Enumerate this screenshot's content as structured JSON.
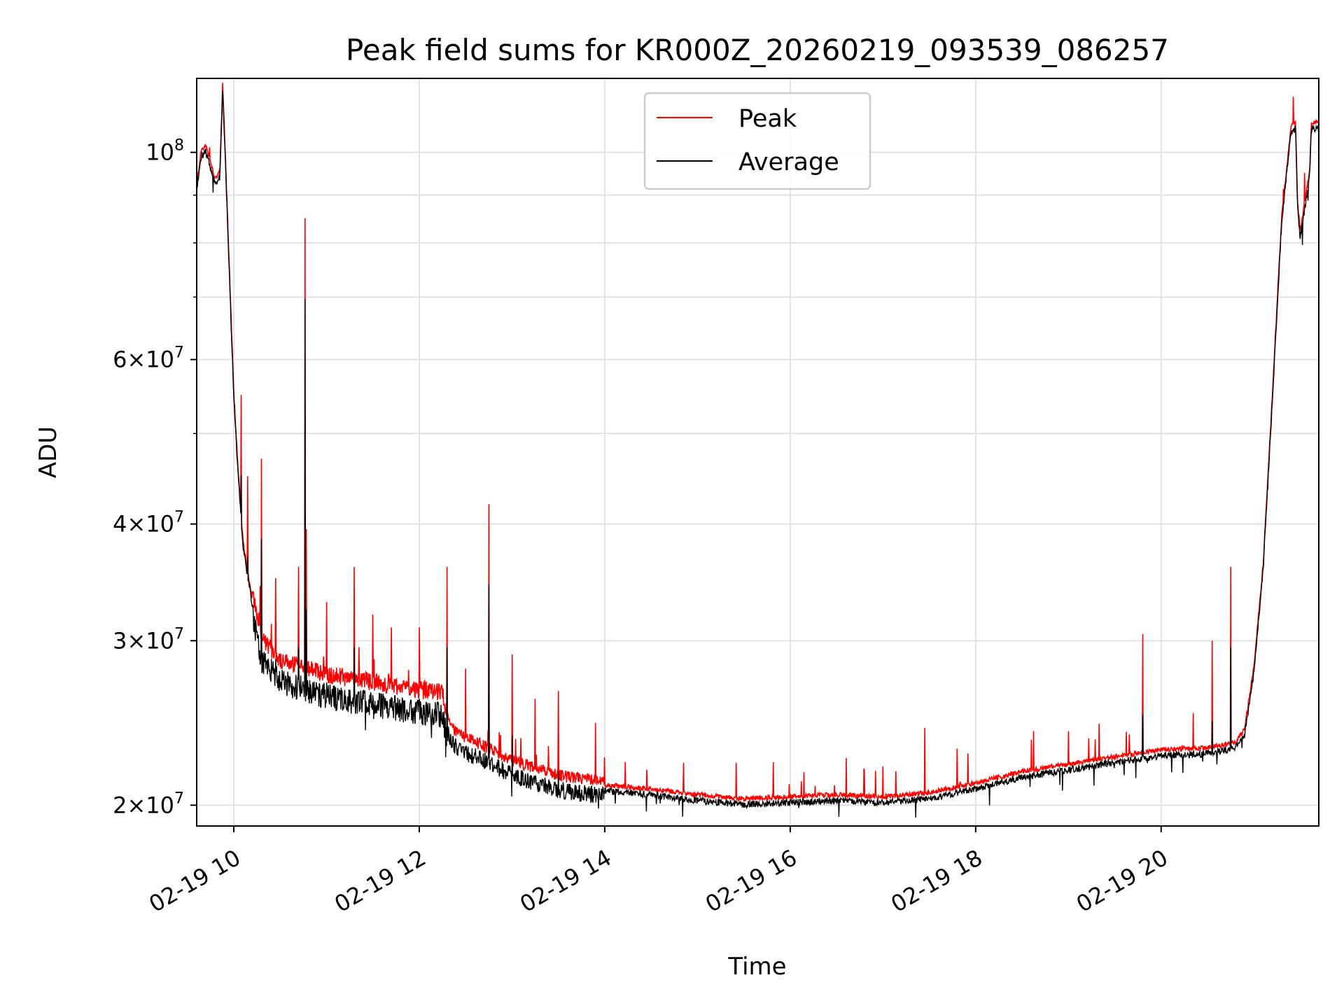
{
  "chart_data": {
    "type": "line",
    "title": "Peak field sums for KR000Z_20260219_093539_086257",
    "xlabel": "Time",
    "ylabel": "ADU",
    "yscale": "log",
    "x_unit": "hours",
    "xlim": [
      9.6,
      21.7
    ],
    "ylim": [
      19000000,
      120000000
    ],
    "grid": true,
    "legend_position": "upper-center",
    "x_ticks": [
      {
        "value": 10,
        "label": "02-19 10"
      },
      {
        "value": 12,
        "label": "02-19 12"
      },
      {
        "value": 14,
        "label": "02-19 14"
      },
      {
        "value": 16,
        "label": "02-19 16"
      },
      {
        "value": 18,
        "label": "02-19 18"
      },
      {
        "value": 20,
        "label": "02-19 20"
      }
    ],
    "y_ticks": [
      {
        "value": 20000000,
        "base": "2",
        "exp": "7"
      },
      {
        "value": 30000000,
        "base": "3",
        "exp": "7"
      },
      {
        "value": 40000000,
        "base": "4",
        "exp": "7"
      },
      {
        "value": 60000000,
        "base": "6",
        "exp": "7"
      },
      {
        "value": 100000000,
        "base": "10",
        "exp": "8"
      }
    ],
    "y_minor_ticks": [
      50000000,
      70000000,
      80000000,
      90000000
    ],
    "series": [
      {
        "name": "Peak",
        "color": "#ff0000",
        "baseline": [
          [
            9.6,
            92000000
          ],
          [
            9.65,
            100000000
          ],
          [
            9.7,
            101000000
          ],
          [
            9.8,
            93000000
          ],
          [
            9.85,
            95000000
          ],
          [
            9.88,
            118000000
          ],
          [
            9.92,
            92000000
          ],
          [
            10.0,
            55000000
          ],
          [
            10.05,
            45000000
          ],
          [
            10.1,
            38000000
          ],
          [
            10.2,
            33000000
          ],
          [
            10.3,
            29500000
          ],
          [
            10.5,
            28000000
          ],
          [
            11.0,
            27000000
          ],
          [
            11.5,
            26500000
          ],
          [
            12.0,
            26000000
          ],
          [
            12.25,
            25800000
          ],
          [
            12.3,
            24500000
          ],
          [
            12.4,
            23500000
          ],
          [
            12.7,
            22800000
          ],
          [
            13.0,
            22000000
          ],
          [
            13.5,
            21200000
          ],
          [
            14.0,
            20900000
          ],
          [
            14.5,
            20700000
          ],
          [
            15.0,
            20400000
          ],
          [
            15.5,
            20200000
          ],
          [
            16.0,
            20300000
          ],
          [
            16.5,
            20400000
          ],
          [
            17.0,
            20300000
          ],
          [
            17.5,
            20500000
          ],
          [
            18.0,
            21000000
          ],
          [
            18.5,
            21600000
          ],
          [
            19.0,
            22000000
          ],
          [
            19.5,
            22400000
          ],
          [
            20.0,
            22800000
          ],
          [
            20.5,
            22900000
          ],
          [
            20.8,
            23200000
          ],
          [
            20.9,
            24000000
          ],
          [
            21.0,
            28000000
          ],
          [
            21.1,
            36000000
          ],
          [
            21.2,
            55000000
          ],
          [
            21.3,
            85000000
          ],
          [
            21.4,
            106000000
          ],
          [
            21.45,
            107000000
          ],
          [
            21.47,
            88000000
          ],
          [
            21.5,
            82000000
          ],
          [
            21.55,
            88000000
          ],
          [
            21.6,
            95000000
          ],
          [
            21.62,
            107000000
          ],
          [
            21.7,
            107000000
          ]
        ],
        "spikes": [
          [
            10.08,
            55000000
          ],
          [
            10.15,
            45000000
          ],
          [
            10.3,
            47000000
          ],
          [
            10.45,
            35000000
          ],
          [
            10.7,
            36000000
          ],
          [
            10.77,
            85000000
          ],
          [
            10.78,
            39500000
          ],
          [
            11.0,
            33000000
          ],
          [
            11.3,
            36000000
          ],
          [
            11.5,
            32000000
          ],
          [
            11.7,
            31000000
          ],
          [
            12.0,
            31000000
          ],
          [
            12.3,
            36000000
          ],
          [
            12.5,
            28000000
          ],
          [
            12.75,
            42000000
          ],
          [
            13.0,
            29000000
          ],
          [
            13.25,
            26000000
          ],
          [
            13.5,
            26500000
          ],
          [
            13.9,
            24500000
          ],
          [
            14.0,
            22500000
          ],
          [
            14.85,
            22200000
          ],
          [
            16.15,
            21700000
          ],
          [
            16.8,
            21800000
          ],
          [
            17.0,
            22000000
          ],
          [
            17.45,
            24200000
          ],
          [
            17.8,
            23000000
          ],
          [
            18.6,
            23500000
          ],
          [
            19.0,
            24000000
          ],
          [
            19.8,
            30500000
          ],
          [
            20.55,
            30000000
          ],
          [
            20.75,
            36000000
          ]
        ]
      },
      {
        "name": "Average",
        "color": "#000000"
      }
    ]
  }
}
